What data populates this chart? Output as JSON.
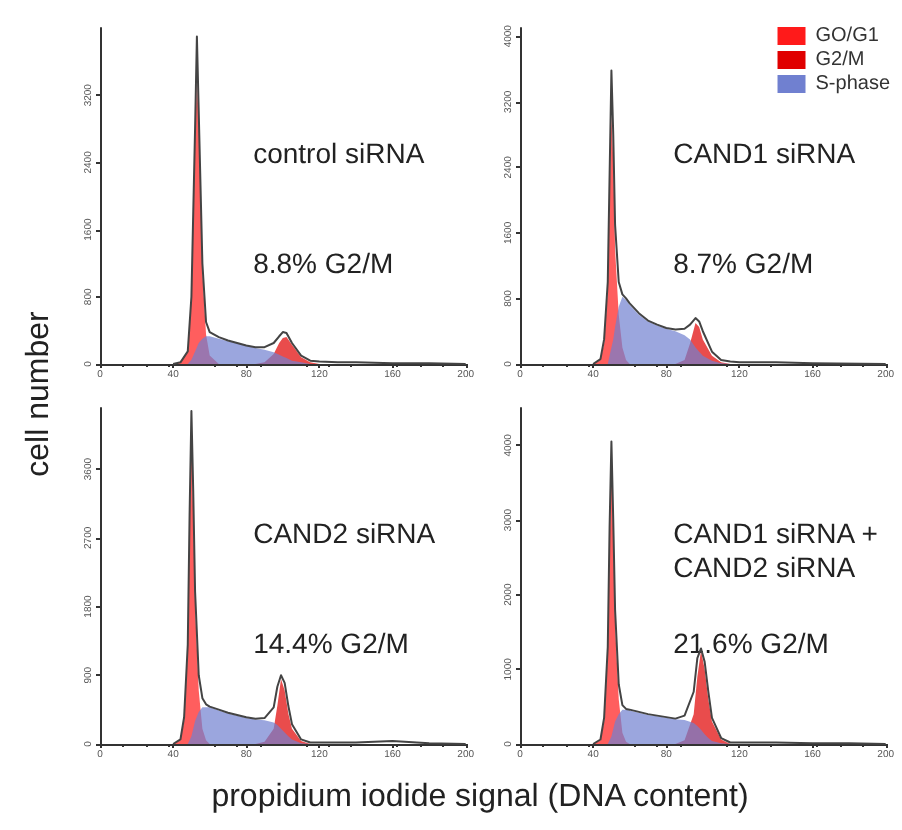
{
  "chart_data": [
    {
      "type": "area",
      "annotations": [
        "control siRNA",
        "8.8% G2/M"
      ],
      "ylabel": "cell number",
      "x": [
        40,
        44,
        48,
        50,
        52,
        53,
        54,
        56,
        58,
        60,
        65,
        70,
        75,
        80,
        85,
        90,
        95,
        98,
        100,
        102,
        105,
        110,
        115,
        120,
        130,
        140,
        160,
        180,
        200
      ],
      "xlim": [
        0,
        200
      ],
      "xticks": [
        0,
        40,
        80,
        120,
        160,
        200
      ],
      "ylim": [
        0,
        4000
      ],
      "yticks": [
        0,
        800,
        1600,
        2400,
        3200
      ],
      "legend": false,
      "series": [
        {
          "color": "#ff1a1a",
          "x": [
            40,
            44,
            48,
            50,
            52,
            53,
            54,
            56,
            58,
            60,
            65
          ],
          "values": [
            0,
            20,
            150,
            800,
            2700,
            3400,
            2900,
            1100,
            350,
            100,
            0
          ]
        },
        {
          "color": "#e00000",
          "x": [
            85,
            90,
            95,
            98,
            100,
            102,
            105,
            110,
            115,
            120
          ],
          "values": [
            0,
            20,
            120,
            250,
            310,
            320,
            230,
            80,
            20,
            0
          ]
        },
        {
          "color": "#7080d0",
          "x": [
            48,
            50,
            52,
            53,
            54,
            56,
            58,
            60,
            65,
            70,
            75,
            80,
            85,
            90,
            95,
            98,
            100,
            102,
            105,
            110,
            115
          ],
          "values": [
            0,
            50,
            150,
            200,
            250,
            300,
            330,
            330,
            300,
            270,
            250,
            220,
            190,
            170,
            140,
            110,
            90,
            70,
            40,
            20,
            0
          ]
        },
        {
          "type": "line",
          "color": "#444444",
          "values": [
            0,
            20,
            150,
            800,
            2800,
            3900,
            3000,
            1200,
            500,
            380,
            320,
            280,
            250,
            220,
            200,
            200,
            250,
            330,
            380,
            370,
            250,
            100,
            40,
            30,
            20,
            20,
            10,
            10,
            0
          ]
        }
      ]
    },
    {
      "type": "area",
      "annotations": [
        "CAND1 siRNA",
        "8.7% G2/M"
      ],
      "x": [
        40,
        44,
        46,
        48,
        49,
        50,
        51,
        52,
        54,
        56,
        58,
        60,
        65,
        70,
        75,
        80,
        85,
        90,
        93,
        96,
        98,
        100,
        105,
        110,
        115,
        120,
        140,
        160,
        200
      ],
      "xlim": [
        0,
        200
      ],
      "xticks": [
        0,
        40,
        80,
        120,
        160,
        200
      ],
      "ylim": [
        0,
        4100
      ],
      "yticks": [
        0,
        800,
        1600,
        2400,
        3200,
        4000
      ],
      "legend": "top right",
      "series": [
        {
          "name": "GO/G1",
          "color": "#ff1a1a",
          "x": [
            40,
            44,
            46,
            48,
            49,
            50,
            51,
            52,
            54,
            56,
            58,
            60
          ],
          "values": [
            0,
            50,
            250,
            900,
            2000,
            3050,
            2500,
            1400,
            600,
            200,
            50,
            0
          ]
        },
        {
          "name": "G2/M",
          "color": "#e00000",
          "x": [
            85,
            90,
            93,
            96,
            98,
            100,
            105,
            110,
            115
          ],
          "values": [
            0,
            50,
            250,
            500,
            450,
            300,
            100,
            20,
            0
          ]
        },
        {
          "name": "S-phase",
          "color": "#7080d0",
          "x": [
            48,
            49,
            50,
            51,
            52,
            54,
            56,
            58,
            60,
            65,
            70,
            75,
            80,
            85,
            90,
            93,
            96,
            98,
            100,
            105,
            110,
            115
          ],
          "values": [
            0,
            100,
            200,
            300,
            450,
            700,
            820,
            780,
            720,
            600,
            520,
            470,
            430,
            400,
            350,
            300,
            200,
            150,
            100,
            40,
            10,
            0
          ]
        },
        {
          "type": "line",
          "color": "#444444",
          "values": [
            0,
            60,
            300,
            1000,
            2300,
            3580,
            2800,
            1700,
            1000,
            850,
            800,
            740,
            620,
            530,
            480,
            440,
            420,
            430,
            480,
            560,
            520,
            400,
            150,
            50,
            30,
            20,
            20,
            10,
            0
          ]
        }
      ]
    },
    {
      "type": "area",
      "annotations": [
        "CAND2 siRNA",
        "14.4% G2/M"
      ],
      "xlabel": "propidium iodide signal (DNA content)",
      "x": [
        40,
        44,
        46,
        48,
        49,
        50,
        51,
        52,
        54,
        56,
        58,
        60,
        65,
        70,
        75,
        80,
        85,
        90,
        95,
        97,
        99,
        101,
        103,
        105,
        110,
        115,
        120,
        140,
        160,
        180,
        200
      ],
      "xlim": [
        0,
        200
      ],
      "xticks": [
        0,
        40,
        80,
        120,
        160,
        200
      ],
      "ylim": [
        0,
        4400
      ],
      "yticks": [
        0,
        900,
        1800,
        2700,
        3600
      ],
      "legend": false,
      "series": [
        {
          "color": "#ff1a1a",
          "x": [
            40,
            44,
            46,
            48,
            49,
            50,
            51,
            52,
            54,
            56,
            58,
            60
          ],
          "values": [
            0,
            50,
            300,
            1200,
            2800,
            4000,
            3000,
            1800,
            700,
            200,
            50,
            0
          ]
        },
        {
          "color": "#e00000",
          "x": [
            85,
            90,
            95,
            97,
            99,
            101,
            103,
            105,
            110,
            115
          ],
          "values": [
            0,
            30,
            200,
            500,
            850,
            700,
            400,
            200,
            40,
            0
          ]
        },
        {
          "color": "#7080d0",
          "x": [
            48,
            49,
            50,
            51,
            52,
            54,
            56,
            58,
            60,
            65,
            70,
            75,
            80,
            85,
            90,
            95,
            97,
            99,
            101,
            103,
            105,
            110,
            115
          ],
          "values": [
            0,
            50,
            100,
            200,
            300,
            420,
            480,
            480,
            480,
            440,
            400,
            370,
            340,
            320,
            310,
            280,
            250,
            200,
            150,
            100,
            60,
            10,
            0
          ]
        },
        {
          "type": "line",
          "color": "#444444",
          "values": [
            0,
            60,
            350,
            1300,
            3000,
            4360,
            3300,
            2000,
            900,
            600,
            520,
            490,
            450,
            410,
            380,
            350,
            330,
            340,
            480,
            750,
            900,
            800,
            500,
            260,
            60,
            20,
            20,
            20,
            40,
            10,
            0
          ]
        }
      ]
    },
    {
      "type": "area",
      "annotations": [
        "CAND1 siRNA +\nCAND2 siRNA",
        "21.6% G2/M"
      ],
      "x": [
        40,
        44,
        46,
        48,
        49,
        50,
        51,
        52,
        54,
        56,
        58,
        60,
        65,
        70,
        75,
        80,
        85,
        90,
        95,
        97,
        99,
        101,
        103,
        105,
        110,
        115,
        120,
        140,
        160,
        180,
        200
      ],
      "xlim": [
        0,
        200
      ],
      "xticks": [
        0,
        40,
        80,
        120,
        160,
        200
      ],
      "ylim": [
        0,
        4500
      ],
      "yticks": [
        0,
        1000,
        2000,
        3000,
        4000
      ],
      "legend": false,
      "series": [
        {
          "color": "#ff1a1a",
          "x": [
            40,
            44,
            46,
            48,
            49,
            50,
            51,
            52,
            54,
            56,
            58,
            60
          ],
          "values": [
            0,
            50,
            300,
            1200,
            2600,
            3700,
            2800,
            1600,
            600,
            150,
            30,
            0
          ]
        },
        {
          "color": "#e00000",
          "x": [
            85,
            90,
            95,
            97,
            99,
            101,
            103,
            105,
            110,
            115
          ],
          "values": [
            0,
            50,
            400,
            900,
            1250,
            1000,
            600,
            300,
            60,
            0
          ]
        },
        {
          "color": "#7080d0",
          "x": [
            48,
            49,
            50,
            51,
            52,
            54,
            56,
            58,
            60,
            65,
            70,
            75,
            80,
            85,
            90,
            95,
            97,
            99,
            101,
            103,
            105,
            110,
            115
          ],
          "values": [
            0,
            50,
            100,
            200,
            300,
            400,
            460,
            460,
            450,
            420,
            390,
            370,
            350,
            330,
            320,
            280,
            240,
            190,
            130,
            80,
            40,
            10,
            0
          ]
        },
        {
          "type": "line",
          "color": "#444444",
          "values": [
            0,
            60,
            350,
            1300,
            2900,
            4050,
            3000,
            1800,
            800,
            520,
            470,
            460,
            430,
            400,
            380,
            360,
            340,
            380,
            700,
            1150,
            1280,
            1100,
            700,
            350,
            80,
            20,
            20,
            20,
            10,
            10,
            0
          ]
        }
      ]
    }
  ]
}
